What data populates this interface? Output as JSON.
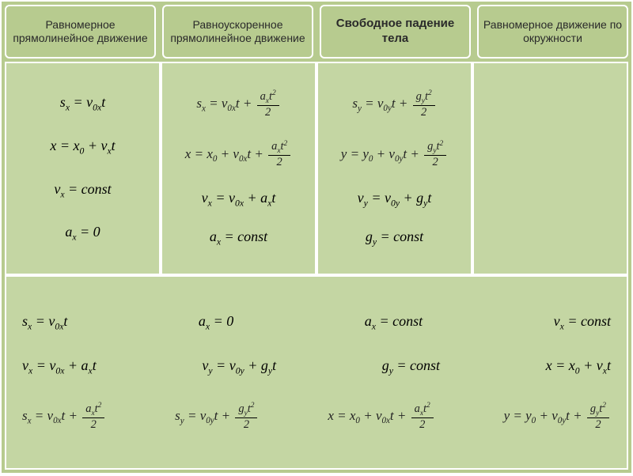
{
  "colors": {
    "bg_dark": "#b7cb8f",
    "bg_light": "#c4d6a3",
    "border": "#ffffff",
    "text": "#000000"
  },
  "typography": {
    "header_font": "Arial",
    "formula_font": "Times New Roman",
    "header_fontsize": 14,
    "formula_fontsize": 18
  },
  "headers": [
    {
      "text": "Равномерное прямолинейное движение",
      "bold": false
    },
    {
      "text": "Равноускоренное прямолинейное движение",
      "bold": false
    },
    {
      "text": "Свободное падение тела",
      "bold": true
    },
    {
      "text": "Равномерное движение по окружности",
      "bold": false
    }
  ],
  "columns": [
    {
      "formulas": [
        "s_x = v_{0x} t",
        "x = x_0 + v_x t",
        "v_x = const",
        "a_x = 0"
      ]
    },
    {
      "formulas": [
        "s_x = v_{0x} t + (a_x t^2)/2",
        "x = x_0 + v_{0x} t + (a_x t^2)/2",
        "v_x = v_{0x} + a_x t",
        "a_x = const"
      ]
    },
    {
      "formulas": [
        "s_y = v_{0y} t + (g_y t^2)/2",
        "y = y_0 + v_{0y} t + (g_y t^2)/2",
        "v_y = v_{0y} + g_y t",
        "g_y = const"
      ]
    },
    {
      "formulas": []
    }
  ],
  "bottom_rows": [
    [
      "s_x = v_{0x} t",
      "a_x = 0",
      "a_x = const",
      "v_x = const"
    ],
    [
      "v_x = v_{0x} + a_x t",
      "v_y = v_{0y} + g_y t",
      "g_y = const",
      "x = x_0 + v_x t"
    ],
    [
      "s_x = v_{0x} t + (a_x t^2)/2",
      "s_y = v_{0y} t + (g_y t^2)/2",
      "x = x_0 + v_{0x} t + (a_x t^2)/2",
      "y = y_0 + v_{0y} t + (g_y t^2)/2"
    ]
  ]
}
